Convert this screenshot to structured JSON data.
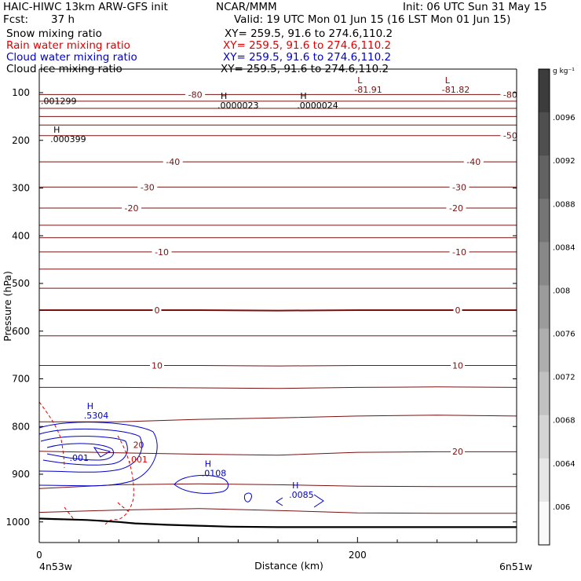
{
  "header": {
    "title": "HAIC-HIWC 13km ARW-GFS init",
    "org": "NCAR/MMM",
    "init": "Init: 06 UTC Sun 31 May 15",
    "fcst_label": "Fcst:",
    "fcst_value": "37 h",
    "valid": "Valid: 19 UTC Mon 01 Jun 15 (16 LST Mon 01 Jun 15)"
  },
  "fields": [
    {
      "name": "Snow mixing ratio",
      "xy": "XY= 259.5, 91.6 to 274.6,110.2",
      "color": "#000000"
    },
    {
      "name": "Rain water mixing ratio",
      "xy": "XY= 259.5, 91.6 to 274.6,110.2",
      "color": "#e00000"
    },
    {
      "name": "Cloud water mixing ratio",
      "xy": "XY= 259.5, 91.6 to 274.6,110.2",
      "color": "#0000c8"
    },
    {
      "name": "Cloud ice mixing ratio",
      "xy": "XY= 259.5, 91.6 to 274.6,110.2",
      "color": "#000000"
    }
  ],
  "colors": {
    "temperature": "#7a1010",
    "rain": "#e00000",
    "cloud_water": "#0000c8",
    "terrain": "#000000"
  },
  "chart_data": {
    "type": "contour-cross-section",
    "xlabel": "Distance (km)",
    "ylabel": "Pressure (hPa)",
    "xlim": [
      0,
      300
    ],
    "ylim": [
      1050,
      60
    ],
    "x_ticks": [
      {
        "value": 0,
        "label": "0"
      },
      {
        "value": 200,
        "label": "200"
      }
    ],
    "y_ticks": [
      {
        "value": 100,
        "label": "100"
      },
      {
        "value": 200,
        "label": "200"
      },
      {
        "value": 300,
        "label": "300"
      },
      {
        "value": 400,
        "label": "400"
      },
      {
        "value": 500,
        "label": "500"
      },
      {
        "value": 600,
        "label": "600"
      },
      {
        "value": 700,
        "label": "700"
      },
      {
        "value": 800,
        "label": "800"
      },
      {
        "value": 900,
        "label": "900"
      },
      {
        "value": 1000,
        "label": "1000"
      }
    ],
    "x_endpoints": {
      "left": "4n53w",
      "right": "6n51w"
    },
    "colorbar": {
      "unit": "g kg⁻¹",
      "ticks": [
        ".0096",
        ".0092",
        ".0088",
        ".0084",
        ".008",
        ".0076",
        ".0072",
        ".0068",
        ".0064",
        ".006"
      ]
    },
    "temperature_contour_labels": [
      {
        "text": "-80",
        "x": 98,
        "p": 104
      },
      {
        "text": "-80",
        "x": 296,
        "p": 104
      },
      {
        "text": "-50",
        "x": 296,
        "p": 190
      },
      {
        "text": "-40",
        "x": 84,
        "p": 245
      },
      {
        "text": "-40",
        "x": 273,
        "p": 245
      },
      {
        "text": "-30",
        "x": 68,
        "p": 298
      },
      {
        "text": "-30",
        "x": 264,
        "p": 298
      },
      {
        "text": "-20",
        "x": 58,
        "p": 342
      },
      {
        "text": "-20",
        "x": 262,
        "p": 342
      },
      {
        "text": "-10",
        "x": 77,
        "p": 434
      },
      {
        "text": "-10",
        "x": 264,
        "p": 434
      },
      {
        "text": "0",
        "x": 74,
        "p": 556
      },
      {
        "text": "0",
        "x": 263,
        "p": 556
      },
      {
        "text": "10",
        "x": 74,
        "p": 672
      },
      {
        "text": "10",
        "x": 263,
        "p": 672
      },
      {
        "text": "20",
        "x": 263,
        "p": 852
      }
    ],
    "extrema_labels": [
      {
        "mark": "L",
        "value": "-81.91",
        "x": 198,
        "p": 80,
        "color": "temperature"
      },
      {
        "mark": "L",
        "value": "-81.82",
        "x": 253,
        "p": 80,
        "color": "temperature"
      },
      {
        "mark": "H",
        "value": ".0000023",
        "x": 112,
        "p": 113,
        "color": "terrain"
      },
      {
        "mark": "H",
        "value": ".0000024",
        "x": 162,
        "p": 113,
        "color": "terrain"
      },
      {
        "mark": "",
        "value": ".001299",
        "x": 1,
        "p": 104,
        "color": "terrain"
      },
      {
        "mark": "H",
        "value": ".000399",
        "x": 7,
        "p": 184,
        "color": "terrain"
      },
      {
        "mark": "H",
        "value": ".5304",
        "x": 28,
        "p": 763,
        "color": "cloud_water"
      },
      {
        "mark": "H",
        "value": ".0108",
        "x": 102,
        "p": 884,
        "color": "cloud_water"
      },
      {
        "mark": "H",
        "value": ".0085",
        "x": 157,
        "p": 930,
        "color": "cloud_water"
      }
    ],
    "other_labels": [
      {
        "text": ".001",
        "x": 19,
        "p": 872,
        "color": "cloud_water"
      },
      {
        "text": ".001",
        "x": 56,
        "p": 875,
        "color": "rain"
      },
      {
        "text": "20",
        "x": 59,
        "p": 845,
        "color": "temperature"
      }
    ],
    "temperature_lines": [
      {
        "label": "-80",
        "p": [
          104,
          104,
          104,
          104,
          104,
          104,
          104
        ]
      },
      {
        "label": "",
        "p": [
          118,
          118,
          118,
          118,
          118,
          118,
          118
        ]
      },
      {
        "label": "",
        "p": [
          133,
          133,
          133,
          133,
          133,
          133,
          133
        ]
      },
      {
        "label": "",
        "p": [
          150,
          150,
          150,
          150,
          150,
          150,
          150
        ]
      },
      {
        "label": "",
        "p": [
          168,
          168,
          168,
          168,
          168,
          168,
          168
        ]
      },
      {
        "label": "-50",
        "p": [
          190,
          190,
          190,
          190,
          190,
          190,
          190
        ]
      },
      {
        "label": "-40",
        "p": [
          245,
          245,
          245,
          245,
          245,
          245,
          245
        ]
      },
      {
        "label": "-30",
        "p": [
          298,
          298,
          298,
          298,
          298,
          298,
          298
        ]
      },
      {
        "label": "-20",
        "p": [
          342,
          342,
          342,
          342,
          342,
          342,
          342
        ]
      },
      {
        "label": "",
        "p": [
          378,
          378,
          378,
          378,
          378,
          378,
          378
        ]
      },
      {
        "label": "",
        "p": [
          404,
          404,
          404,
          404,
          404,
          404,
          404
        ]
      },
      {
        "label": "-10",
        "p": [
          434,
          434,
          434,
          434,
          434,
          434,
          434
        ]
      },
      {
        "label": "",
        "p": [
          470,
          470,
          470,
          470,
          470,
          470,
          470
        ]
      },
      {
        "label": "",
        "p": [
          510,
          510,
          510,
          510,
          510,
          510,
          510
        ]
      },
      {
        "label": "0",
        "p": [
          556,
          556,
          556,
          557,
          556,
          556,
          556
        ]
      },
      {
        "label": "",
        "p": [
          610,
          610,
          610,
          610,
          610,
          610,
          610
        ]
      },
      {
        "label": "10",
        "p": [
          672,
          672,
          672,
          673,
          672,
          672,
          672
        ]
      },
      {
        "label": "",
        "p": [
          718,
          718,
          719,
          720,
          718,
          717,
          718
        ]
      },
      {
        "label": "",
        "p": [
          790,
          790,
          785,
          782,
          778,
          776,
          778
        ]
      },
      {
        "label": "20",
        "p": [
          852,
          855,
          858,
          860,
          854,
          853,
          853
        ]
      },
      {
        "label": "",
        "p": [
          930,
          922,
          920,
          922,
          925,
          926,
          926
        ]
      },
      {
        "label": "",
        "p": [
          980,
          975,
          972,
          976,
          981,
          982,
          982
        ]
      }
    ],
    "temperature_line_x": [
      0,
      50,
      100,
      150,
      200,
      250,
      300
    ],
    "terrain": {
      "x": [
        0,
        10,
        20,
        30,
        40,
        50,
        60,
        80,
        100,
        120,
        150,
        200,
        250,
        300
      ],
      "p": [
        993,
        994,
        995,
        996,
        998,
        1000,
        1003,
        1006,
        1008,
        1010,
        1011,
        1011,
        1011,
        1011
      ]
    }
  }
}
